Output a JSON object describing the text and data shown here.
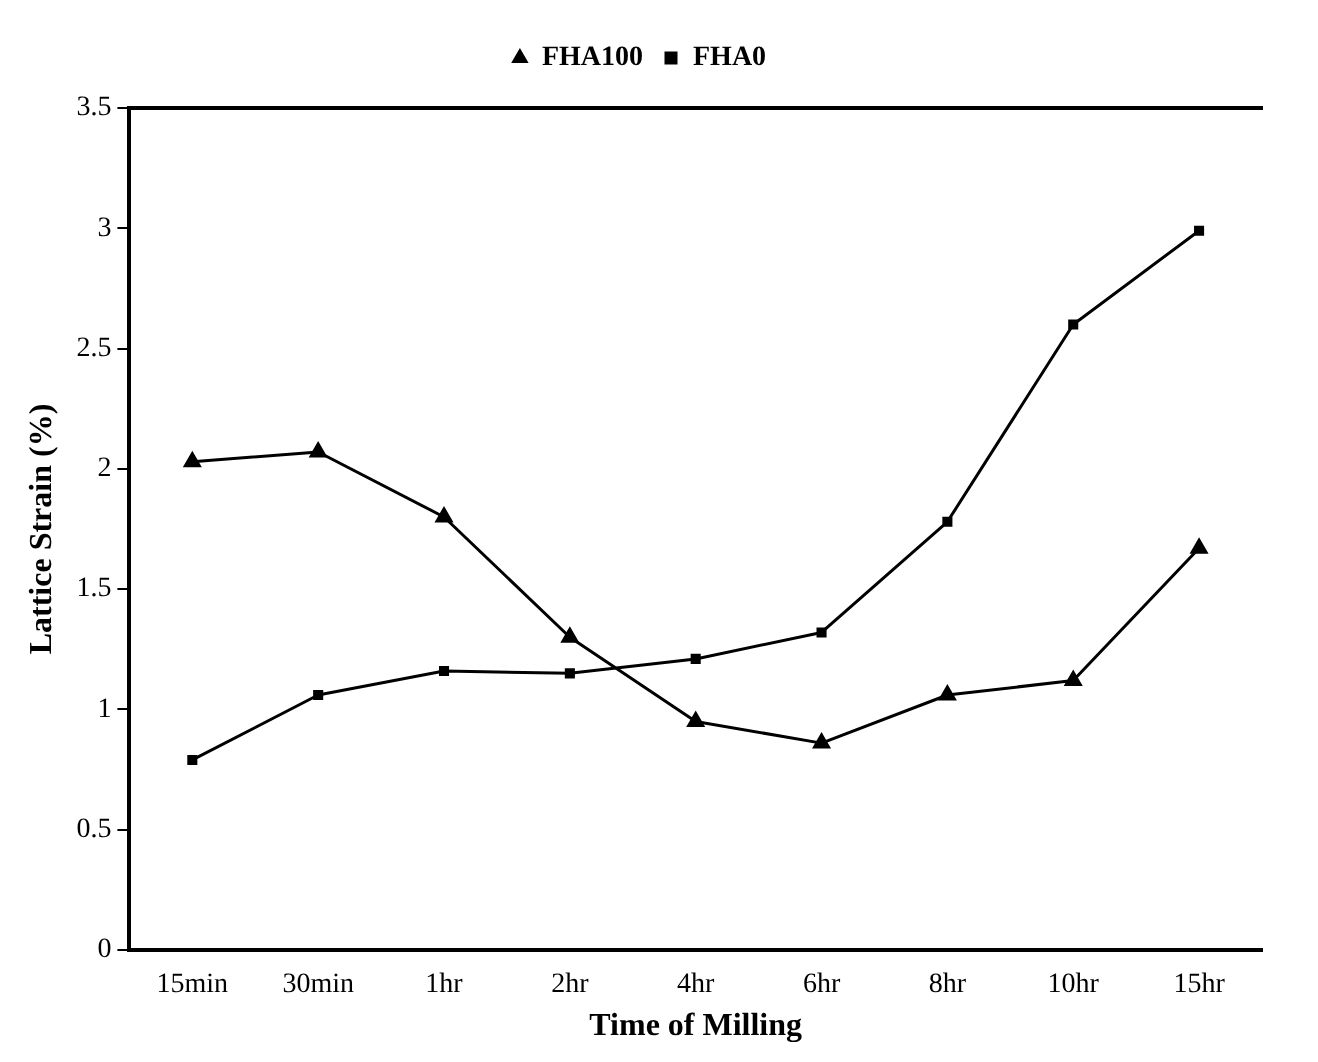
{
  "chart_data": {
    "type": "line",
    "xlabel": "Time of Milling",
    "ylabel": "Lattice Strain (%)",
    "categories": [
      "15min",
      "30min",
      "1hr",
      "2hr",
      "4hr",
      "6hr",
      "8hr",
      "10hr",
      "15hr"
    ],
    "series": [
      {
        "name": "FHA100",
        "color": "#000000",
        "marker": "triangle",
        "values": [
          2.03,
          2.07,
          1.8,
          1.3,
          0.95,
          0.86,
          1.06,
          1.12,
          1.67
        ]
      },
      {
        "name": "FHA0",
        "color": "#000000",
        "marker": "square",
        "values": [
          0.79,
          1.06,
          1.16,
          1.15,
          1.21,
          1.32,
          1.78,
          2.6,
          2.99
        ]
      }
    ],
    "ylim": [
      0,
      3.5
    ],
    "yticks": [
      0,
      0.5,
      1,
      1.5,
      2,
      2.5,
      3,
      3.5
    ],
    "grid": false,
    "legend": "top",
    "line_style": "solid"
  }
}
